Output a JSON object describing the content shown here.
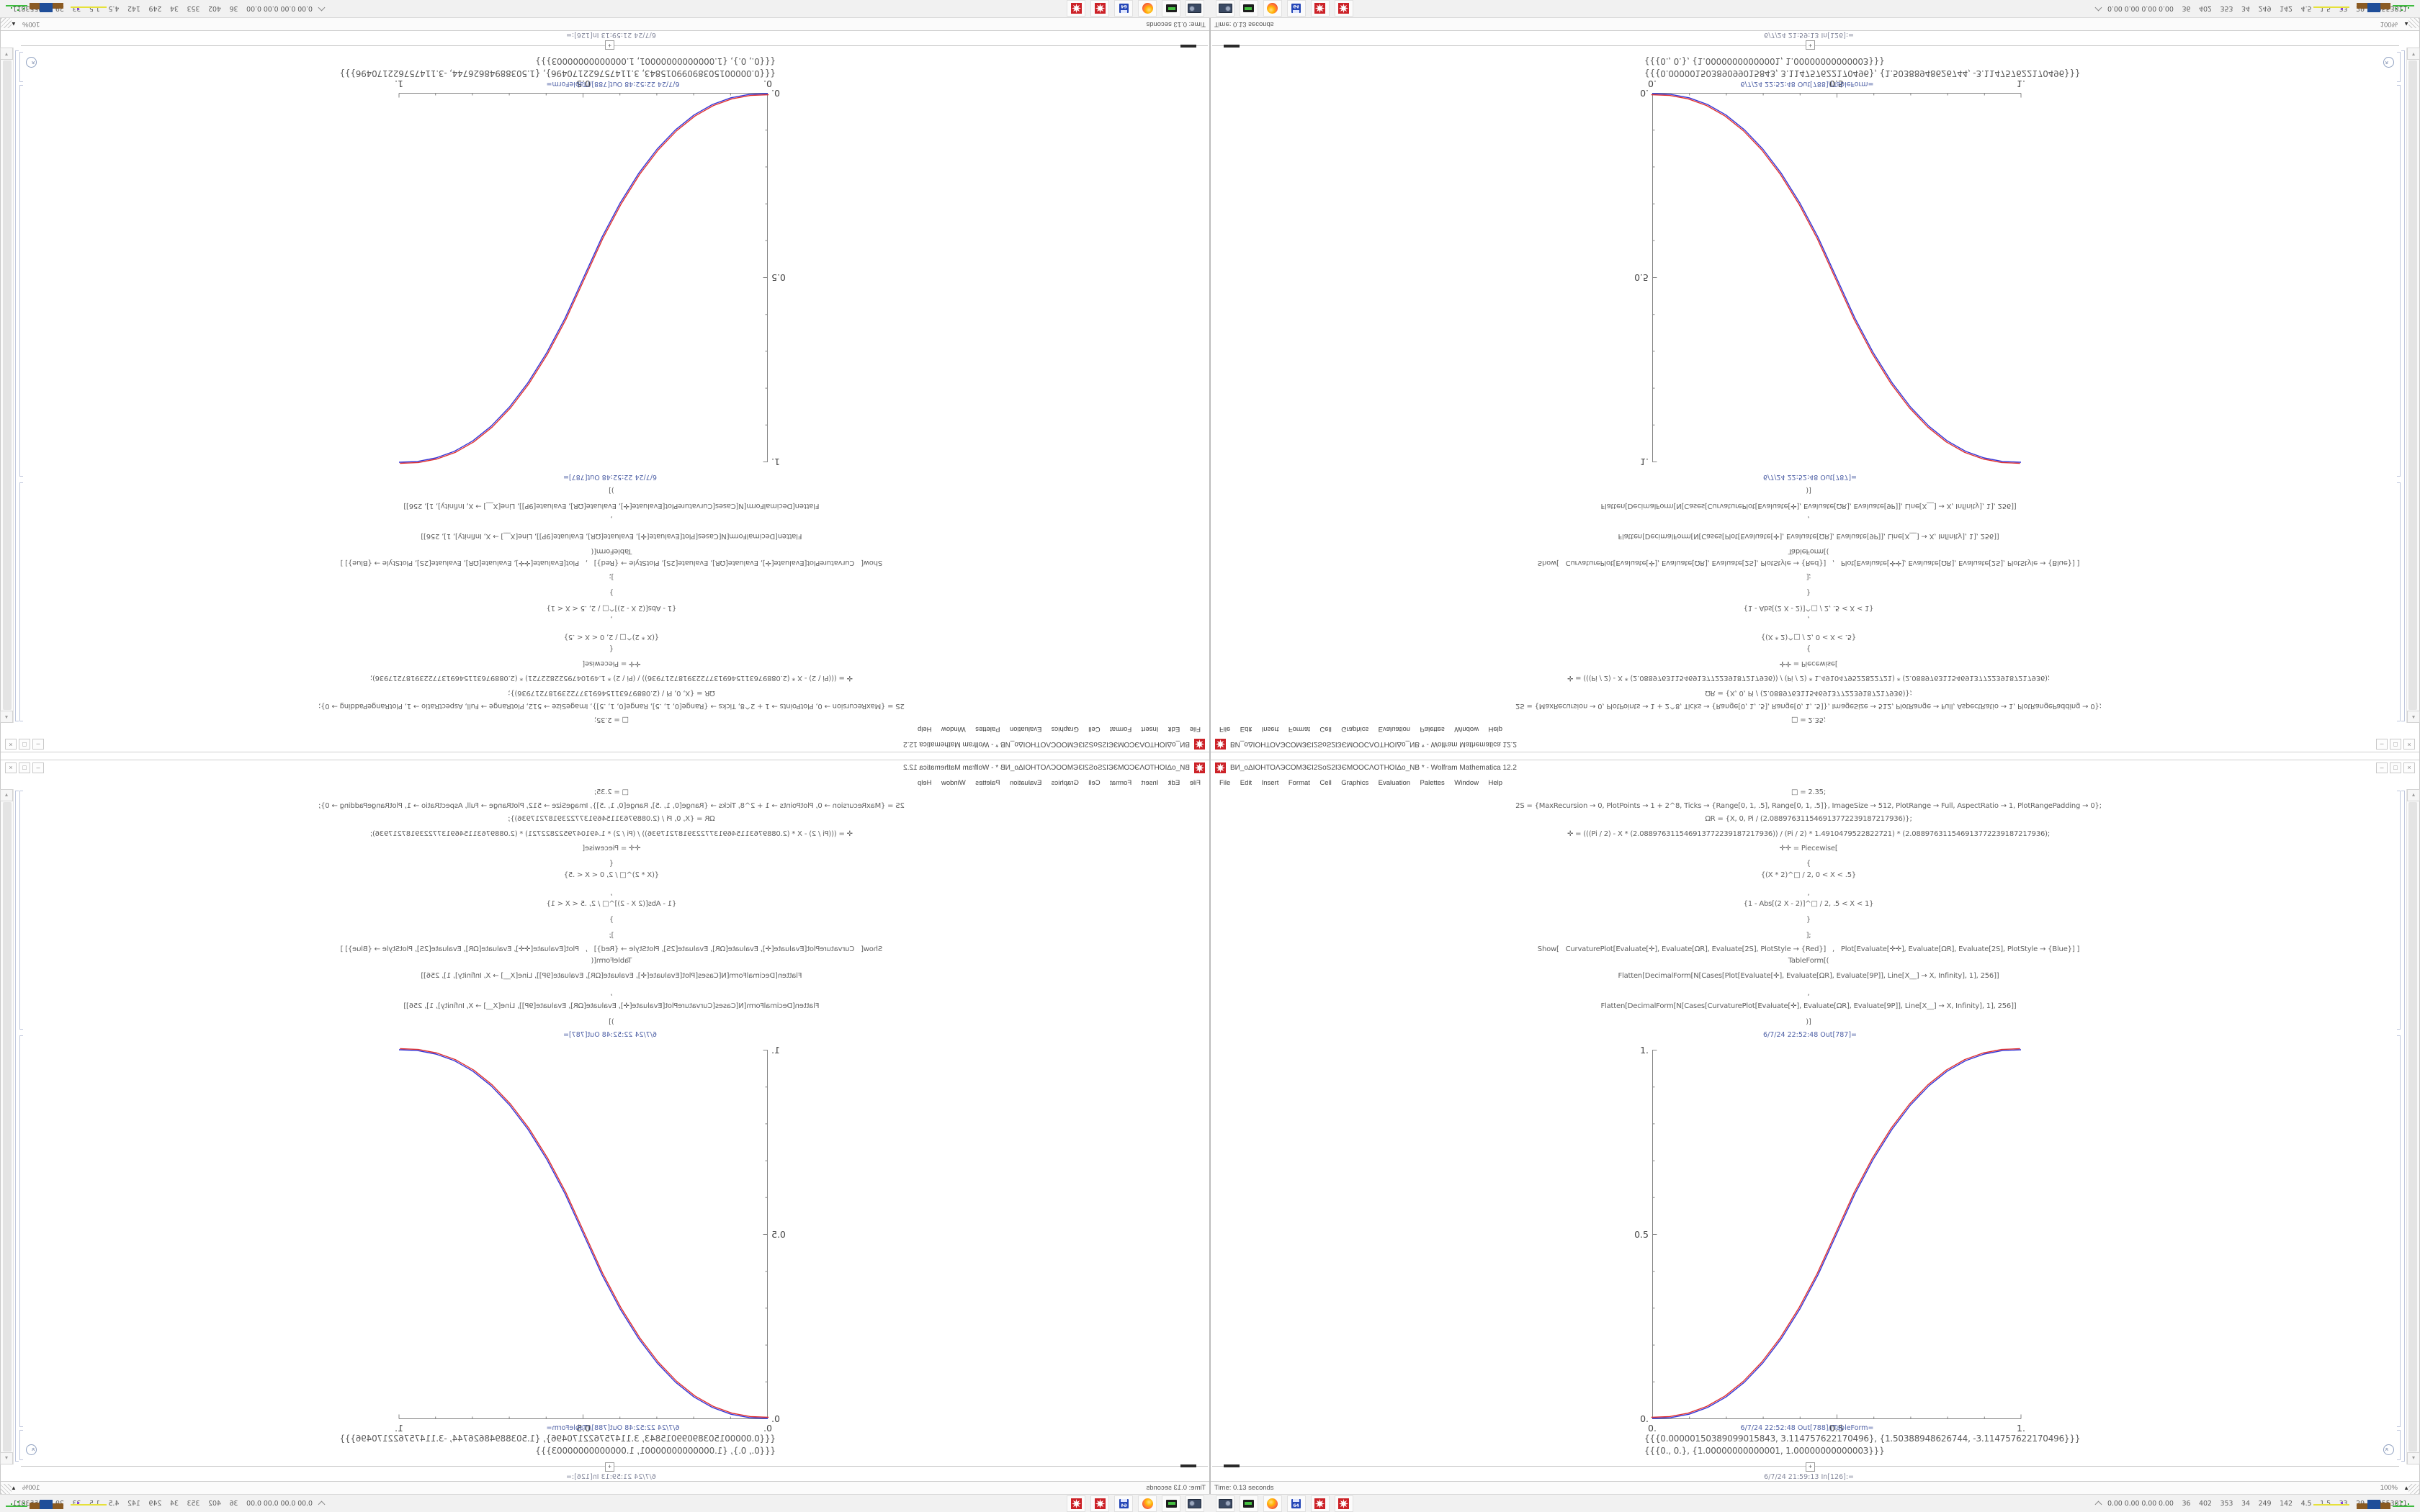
{
  "app_title": "Wolfram Mathematica 12.2",
  "window": {
    "title": "ВИ_оΔІОНТОΛЭСОМЗЄІ2ЅоЅ2ІЗЄМООСΛОТНОІΔо_NB * - Wolfram Mathematica 12.2",
    "menu_items": [
      "File",
      "Edit",
      "Insert",
      "Format",
      "Cell",
      "Graphics",
      "Evaluation",
      "Palettes",
      "Window",
      "Help"
    ],
    "minimize_glyph": "–",
    "maximize_glyph": "□",
    "close_glyph": "×"
  },
  "notebook": {
    "code_lines": [
      "□ = 2.35;",
      "2S = {MaxRecursion → 0, PlotPoints → 1 + 2^8, Ticks → {Range[0, 1, .5], Range[0, 1, .5]}, ImageSize → 512, PlotRange → Full, AspectRatio → 1, PlotRangePadding → 0};",
      "ΩR = {X, 0, Pi / (2.088976311546913772239187217936)};",
      "✛ = (((Pi / 2) - X * (2.088976311546913772239187217936)) / (Pi / 2) * 1.4910479522822721) * (2.088976311546913772239187217936);",
      "✛✛ = Piecewise[",
      "{",
      "{(X * 2)^□ / 2, 0 < X < .5}",
      ",",
      "{1 - Abs[(2 X - 2)]^□ / 2, .5 < X < 1}",
      "}",
      "];",
      "Show[   CurvaturePlot[Evaluate[✛], Evaluate[ΩR], Evaluate[2S], PlotStyle → {Red}]   ,   Plot[Evaluate[✛✛], Evaluate[ΩR], Evaluate[2S], PlotStyle → {Blue}] ]",
      "TableForm[(",
      "Flatten[DecimalForm[N[Cases[Plot[Evaluate[✛], Evaluate[ΩR], Evaluate[9P]], Line[X__] → X, Infinity], 1], 256]]",
      ",",
      "Flatten[DecimalForm[N[Cases[CurvaturePlot[Evaluate[✛], Evaluate[ΩR], Evaluate[9P]], Line[X__] → X, Infinity], 1], 256]]",
      ")]"
    ],
    "out_plot_label": "6/7/24 22:52:48 Out[787]=",
    "out_table_label": "6/7/24 22:52:48 Out[788]//TableForm=",
    "table_rows": [
      "{{{0.00000150389099015843, 3.114757622170496}, {1.50388948626744, -3.114757622170496}}}",
      "{{{0., 0.}, {1.00000000000001, 1.00000000000003}}}"
    ],
    "next_input_label": "6/7/24 21:59:13 In[126]:=",
    "insert_button_glyph": "+"
  },
  "chart_data": {
    "type": "line",
    "title": "",
    "xlabel": "",
    "ylabel": "",
    "xlim": [
      0,
      1
    ],
    "ylim": [
      0,
      1
    ],
    "xticks": [
      0,
      0.5,
      1
    ],
    "yticks": [
      0,
      0.5,
      1
    ],
    "xtick_labels": [
      "0.",
      "0.5",
      "1."
    ],
    "ytick_labels": [
      "0.",
      "0.5",
      "1."
    ],
    "grid": false,
    "legend_position": "none",
    "x": [
      0,
      0.05,
      0.1,
      0.15,
      0.2,
      0.25,
      0.3,
      0.35,
      0.4,
      0.45,
      0.5,
      0.55,
      0.6,
      0.65,
      0.7,
      0.75,
      0.8,
      0.85,
      0.9,
      0.95,
      1
    ],
    "series": [
      {
        "name": "CurvaturePlot[✛] (Red)",
        "color": "#e03030",
        "values": [
          0,
          0.0022,
          0.0114,
          0.0295,
          0.058,
          0.098,
          0.1504,
          0.2163,
          0.2961,
          0.3903,
          0.5,
          0.6097,
          0.7039,
          0.7837,
          0.8496,
          0.902,
          0.942,
          0.9705,
          0.9886,
          0.9978,
          1
        ]
      },
      {
        "name": "Plot[✛✛ Piecewise] (Blue)",
        "color": "#3434d6",
        "values": [
          0,
          0.0022,
          0.0114,
          0.0295,
          0.058,
          0.098,
          0.1504,
          0.2163,
          0.2961,
          0.3903,
          0.5,
          0.6097,
          0.7039,
          0.7837,
          0.8496,
          0.902,
          0.942,
          0.9705,
          0.9886,
          0.9978,
          1
        ]
      }
    ],
    "description": "Two nearly coincident S-curves from (0,0) to (1,1): piecewise (2x)^2.35/2 for 0<x<.5 and 1-(2-2x)^2.35/2 for .5<x<1; image appears 4 times (normal, mirrored horizontally, mirrored vertically, rotated 180°)."
  },
  "status_bar": {
    "message": "Time: 0.13 seconds",
    "magnification": "100%",
    "magnification_dropdown_glyph": "▲"
  },
  "taskbar": {
    "icons": [
      "display-settings-icon",
      "disk-tool-icon",
      "firefox-icon",
      "floppy-64-icon",
      "mathematica-icon",
      "mathematica-icon"
    ],
    "floppy_label": "64",
    "tray_numbers": "0.00 0.00 0.00 0.00    36    402    353    34    249    142    4.5    1.5    33    29    29553811"
  },
  "colors": {
    "mathematica_red": "#cc2127",
    "cell_label_blue": "#4d5fa5",
    "curve_red": "#e03030",
    "curve_blue": "#3434d6",
    "taskbar_bg": "#f1f1f1"
  }
}
